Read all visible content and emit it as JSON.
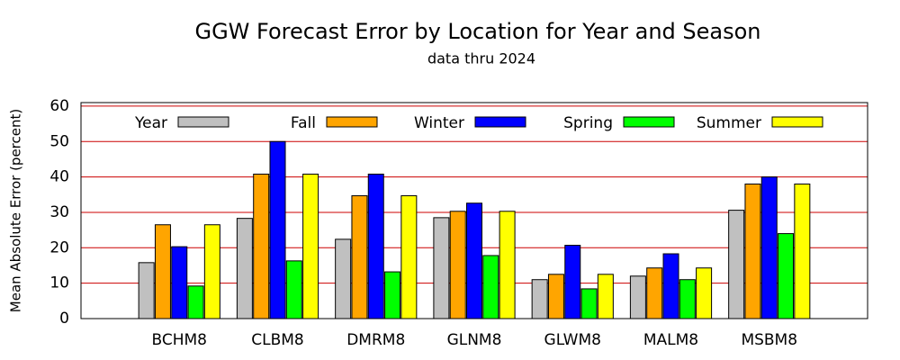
{
  "chart_data": {
    "type": "bar",
    "title": "GGW Forecast Error by Location for Year and Season",
    "subtitle": "data thru 2024",
    "y_label": "Mean Absolute Error (percent)",
    "categories": [
      "BCHM8",
      "CLBM8",
      "DMRM8",
      "GLNM8",
      "GLWM8",
      "MALM8",
      "MSBM8"
    ],
    "series": [
      {
        "name": "Year",
        "color": "#c0c0c0",
        "values": [
          15.8,
          28.3,
          22.4,
          28.5,
          11,
          12,
          30.6
        ]
      },
      {
        "name": "Fall",
        "color": "#ffa500",
        "values": [
          26.5,
          40.8,
          34.7,
          30.3,
          12.5,
          14.3,
          38
        ]
      },
      {
        "name": "Winter",
        "color": "#0000ff",
        "values": [
          20.3,
          50,
          40.8,
          32.6,
          20.7,
          18.3,
          40
        ]
      },
      {
        "name": "Spring",
        "color": "#00ff00",
        "values": [
          9.2,
          16.3,
          13.2,
          17.8,
          8.4,
          11,
          24
        ]
      },
      {
        "name": "Summer",
        "color": "#ffff00",
        "values": [
          26.5,
          40.8,
          34.7,
          30.3,
          12.5,
          14.3,
          38
        ]
      }
    ],
    "ylim": [
      0,
      61
    ],
    "yticks": [
      0,
      10,
      20,
      30,
      40,
      50,
      60
    ],
    "grid": true,
    "grid_color": "#cc0000",
    "legend": "top"
  }
}
